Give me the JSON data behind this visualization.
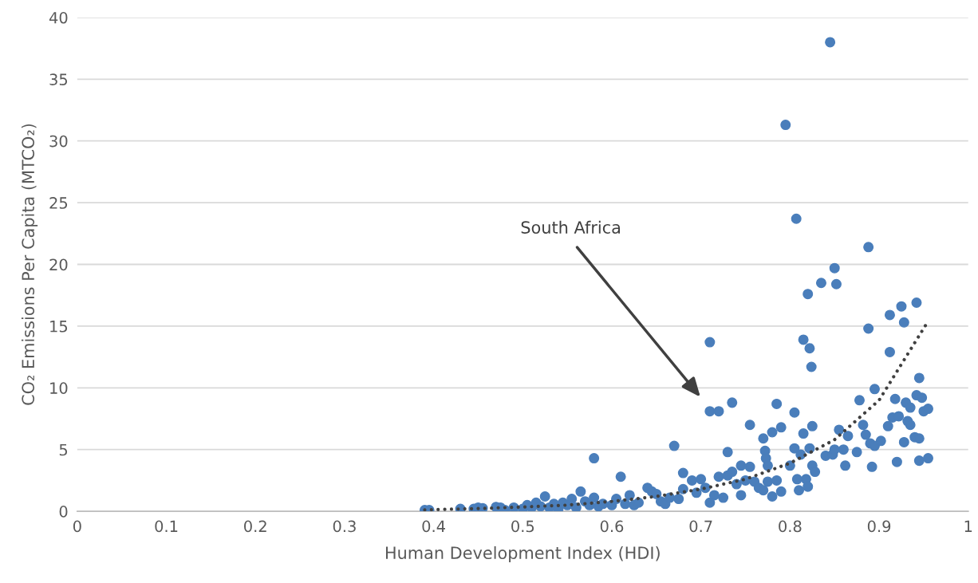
{
  "chart_data": {
    "type": "scatter",
    "xlabel": "Human Development Index (HDI)",
    "ylabel": "CO₂ Emissions Per Capita (MTCO₂)",
    "xlim": [
      0,
      1
    ],
    "xticks": [
      0,
      0.1,
      0.2,
      0.3,
      0.4,
      0.5,
      0.6,
      0.7,
      0.8,
      0.9,
      1
    ],
    "ylim": [
      0,
      40
    ],
    "yticks": [
      0,
      5,
      10,
      15,
      20,
      25,
      30,
      35,
      40
    ],
    "grid": "y",
    "legend": false,
    "annotations": [
      "South Africa"
    ],
    "series": [
      {
        "marker": "circle",
        "color": "#4a7ebb",
        "x": [
          0.39,
          0.395,
          0.43,
          0.445,
          0.45,
          0.455,
          0.47,
          0.475,
          0.48,
          0.49,
          0.5,
          0.505,
          0.51,
          0.515,
          0.52,
          0.525,
          0.53,
          0.535,
          0.54,
          0.545,
          0.55,
          0.555,
          0.56,
          0.565,
          0.57,
          0.575,
          0.58,
          0.58,
          0.585,
          0.59,
          0.6,
          0.605,
          0.61,
          0.615,
          0.62,
          0.625,
          0.63,
          0.64,
          0.645,
          0.65,
          0.655,
          0.66,
          0.665,
          0.67,
          0.675,
          0.68,
          0.68,
          0.69,
          0.695,
          0.7,
          0.705,
          0.71,
          0.71,
          0.71,
          0.715,
          0.72,
          0.72,
          0.725,
          0.73,
          0.73,
          0.735,
          0.735,
          0.74,
          0.745,
          0.745,
          0.75,
          0.755,
          0.755,
          0.76,
          0.765,
          0.77,
          0.77,
          0.772,
          0.773,
          0.775,
          0.775,
          0.78,
          0.78,
          0.785,
          0.785,
          0.79,
          0.79,
          0.795,
          0.8,
          0.805,
          0.805,
          0.807,
          0.808,
          0.81,
          0.812,
          0.815,
          0.815,
          0.818,
          0.82,
          0.82,
          0.822,
          0.822,
          0.824,
          0.825,
          0.825,
          0.828,
          0.835,
          0.84,
          0.845,
          0.848,
          0.85,
          0.85,
          0.852,
          0.855,
          0.86,
          0.862,
          0.865,
          0.875,
          0.878,
          0.882,
          0.885,
          0.888,
          0.888,
          0.89,
          0.892,
          0.895,
          0.895,
          0.902,
          0.91,
          0.912,
          0.912,
          0.915,
          0.918,
          0.92,
          0.922,
          0.925,
          0.928,
          0.928,
          0.93,
          0.932,
          0.935,
          0.935,
          0.94,
          0.942,
          0.942,
          0.945,
          0.945,
          0.945,
          0.948,
          0.95,
          0.955,
          0.955
        ],
        "values": [
          0.1,
          0.1,
          0.2,
          0.2,
          0.3,
          0.25,
          0.35,
          0.3,
          0.1,
          0.3,
          0.2,
          0.5,
          0.3,
          0.7,
          0.4,
          1.2,
          0.3,
          0.6,
          0.2,
          0.7,
          0.5,
          1.0,
          0.3,
          1.6,
          0.8,
          0.5,
          4.3,
          1.1,
          0.4,
          0.6,
          0.5,
          1.0,
          2.8,
          0.6,
          1.3,
          0.5,
          0.7,
          1.9,
          1.6,
          1.4,
          0.8,
          0.6,
          1.1,
          5.3,
          1.0,
          3.1,
          1.8,
          2.5,
          1.5,
          2.6,
          1.9,
          13.7,
          8.1,
          0.7,
          1.3,
          2.8,
          8.1,
          1.1,
          2.9,
          4.8,
          8.8,
          3.2,
          2.2,
          1.3,
          3.7,
          2.5,
          7.0,
          3.6,
          2.4,
          1.9,
          1.7,
          5.9,
          4.9,
          4.3,
          3.7,
          2.4,
          6.4,
          1.2,
          2.5,
          8.7,
          6.8,
          1.6,
          31.3,
          3.7,
          5.1,
          8.0,
          23.7,
          2.6,
          1.7,
          4.6,
          13.9,
          6.3,
          2.6,
          2.0,
          17.6,
          5.1,
          13.2,
          11.7,
          6.9,
          3.7,
          3.2,
          18.5,
          4.5,
          38.0,
          4.6,
          19.7,
          5.0,
          18.4,
          6.6,
          5.0,
          3.7,
          6.1,
          4.8,
          9.0,
          7.0,
          6.2,
          14.8,
          21.4,
          5.5,
          3.6,
          9.9,
          5.3,
          5.7,
          6.9,
          15.9,
          12.9,
          7.6,
          9.1,
          4.0,
          7.7,
          16.6,
          15.3,
          5.6,
          8.8,
          7.3,
          8.4,
          7.0,
          6.0,
          16.9,
          9.4,
          10.8,
          5.9,
          4.1,
          9.2,
          8.1,
          8.3,
          4.3
        ]
      },
      {
        "type": "line",
        "color": "#404040",
        "line_style": "dotted",
        "x": [
          0.39,
          0.45,
          0.5,
          0.55,
          0.6,
          0.65,
          0.7,
          0.75,
          0.8,
          0.85,
          0.9,
          0.955
        ],
        "values": [
          0.12,
          0.22,
          0.35,
          0.5,
          0.8,
          1.2,
          1.8,
          2.6,
          3.9,
          5.8,
          9.0,
          15.4
        ]
      }
    ]
  }
}
